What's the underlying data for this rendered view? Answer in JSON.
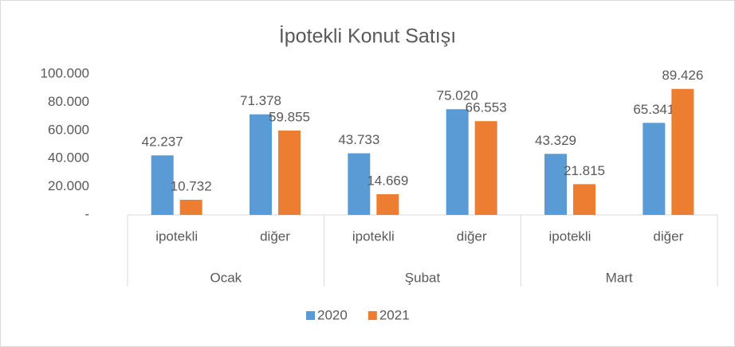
{
  "chart_data": {
    "type": "bar",
    "title": "İpotekli Konut Satışı",
    "categories": [
      "ipotekli",
      "diğer",
      "ipotekli",
      "diğer",
      "ipotekli",
      "diğer"
    ],
    "groups": [
      "Ocak",
      "Şubat",
      "Mart"
    ],
    "series": [
      {
        "name": "2020",
        "color": "#5b9bd5",
        "values": [
          42237,
          71378,
          43733,
          75020,
          43329,
          65341
        ],
        "value_labels": [
          "42.237",
          "71.378",
          "43.733",
          "75.020",
          "43.329",
          "65.341"
        ]
      },
      {
        "name": "2021",
        "color": "#ed7d31",
        "values": [
          10732,
          59855,
          14669,
          66553,
          21815,
          89426
        ],
        "value_labels": [
          "10.732",
          "59.855",
          "14.669",
          "66.553",
          "21.815",
          "89.426"
        ]
      }
    ],
    "ylim": [
      0,
      100000
    ],
    "yticks": [
      {
        "value": 0,
        "label": "-"
      },
      {
        "value": 20000,
        "label": "20.000"
      },
      {
        "value": 40000,
        "label": "40.000"
      },
      {
        "value": 60000,
        "label": "60.000"
      },
      {
        "value": 80000,
        "label": "80.000"
      },
      {
        "value": 100000,
        "label": "100.000"
      }
    ],
    "grid": false,
    "legend": "bottom"
  }
}
